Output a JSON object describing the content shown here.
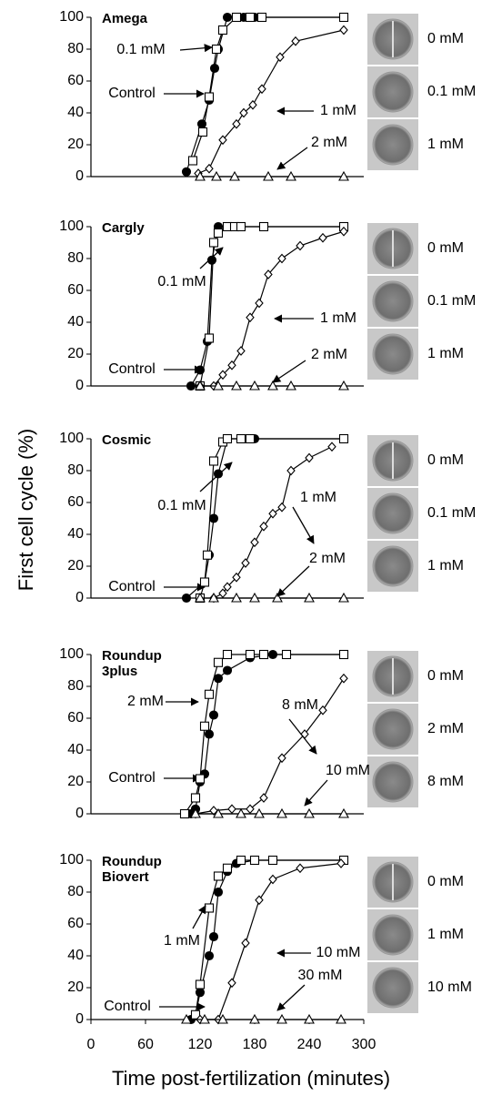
{
  "ylabel": "First cell cycle (%)",
  "xlabel": "Time post-fertilization (minutes)",
  "chart_data": [
    {
      "type": "line",
      "title": "Amega",
      "xlim": [
        0,
        300
      ],
      "ylim": [
        0,
        100
      ],
      "yticks": [
        0,
        20,
        40,
        60,
        80,
        100
      ],
      "image_labels": [
        "0 mM",
        "0.1 mM",
        "1 mM"
      ],
      "series": [
        {
          "name": "Control",
          "marker": "circle",
          "color": "#000000",
          "x": [
            105,
            122,
            130,
            136,
            140,
            150,
            160,
            168,
            180,
            278
          ],
          "values": [
            3,
            33,
            48,
            68,
            80,
            100,
            100,
            100,
            100,
            100
          ]
        },
        {
          "name": "0.1 mM",
          "marker": "square",
          "color": "#000000",
          "x": [
            112,
            123,
            130,
            138,
            145,
            160,
            175,
            188,
            278
          ],
          "values": [
            10,
            28,
            50,
            80,
            92,
            100,
            100,
            100,
            100
          ]
        },
        {
          "name": "1 mM",
          "marker": "diamond",
          "color": "#000000",
          "x": [
            118,
            130,
            145,
            160,
            168,
            178,
            188,
            208,
            225,
            278
          ],
          "values": [
            2,
            5,
            23,
            33,
            40,
            45,
            55,
            75,
            85,
            92
          ]
        },
        {
          "name": "2 mM",
          "marker": "triangle",
          "color": "#000000",
          "x": [
            120,
            138,
            158,
            195,
            220,
            278
          ],
          "values": [
            0,
            0,
            0,
            0,
            0,
            0
          ]
        }
      ]
    },
    {
      "type": "line",
      "title": "Cargly",
      "xlim": [
        0,
        300
      ],
      "ylim": [
        0,
        100
      ],
      "yticks": [
        0,
        20,
        40,
        60,
        80,
        100
      ],
      "image_labels": [
        "0 mM",
        "0.1 mM",
        "1 mM"
      ],
      "series": [
        {
          "name": "Control",
          "marker": "circle",
          "color": "#000000",
          "x": [
            110,
            120,
            128,
            133,
            140,
            150,
            160,
            278
          ],
          "values": [
            0,
            10,
            28,
            79,
            100,
            100,
            100,
            100
          ]
        },
        {
          "name": "0.1 mM",
          "marker": "square",
          "color": "#000000",
          "x": [
            120,
            130,
            135,
            140,
            150,
            158,
            165,
            190,
            278
          ],
          "values": [
            0,
            30,
            90,
            96,
            100,
            100,
            100,
            100,
            100
          ]
        },
        {
          "name": "1 mM",
          "marker": "diamond",
          "color": "#000000",
          "x": [
            120,
            135,
            145,
            155,
            165,
            175,
            185,
            195,
            210,
            230,
            255,
            278
          ],
          "values": [
            0,
            0,
            7,
            13,
            22,
            43,
            52,
            70,
            80,
            88,
            93,
            97
          ]
        },
        {
          "name": "2 mM",
          "marker": "triangle",
          "color": "#000000",
          "x": [
            120,
            140,
            160,
            180,
            200,
            220,
            278
          ],
          "values": [
            0,
            0,
            0,
            0,
            0,
            0,
            0
          ]
        }
      ]
    },
    {
      "type": "line",
      "title": "Cosmic",
      "xlim": [
        0,
        300
      ],
      "ylim": [
        0,
        100
      ],
      "yticks": [
        0,
        20,
        40,
        60,
        80,
        100
      ],
      "image_labels": [
        "0 mM",
        "0.1 mM",
        "1 mM"
      ],
      "series": [
        {
          "name": "Control",
          "marker": "circle",
          "color": "#000000",
          "x": [
            105,
            125,
            130,
            135,
            140,
            150,
            165,
            180,
            278
          ],
          "values": [
            0,
            10,
            27,
            50,
            78,
            100,
            100,
            100,
            100
          ]
        },
        {
          "name": "0.1 mM",
          "marker": "square",
          "color": "#000000",
          "x": [
            120,
            125,
            128,
            135,
            145,
            150,
            165,
            175,
            278
          ],
          "values": [
            0,
            10,
            27,
            86,
            98,
            100,
            100,
            100,
            100
          ]
        },
        {
          "name": "1 mM",
          "marker": "diamond",
          "color": "#000000",
          "x": [
            135,
            145,
            150,
            160,
            170,
            180,
            190,
            200,
            210,
            220,
            240,
            265
          ],
          "values": [
            0,
            3,
            7,
            13,
            22,
            35,
            45,
            53,
            57,
            80,
            88,
            95
          ]
        },
        {
          "name": "2 mM",
          "marker": "triangle",
          "color": "#000000",
          "x": [
            120,
            135,
            160,
            180,
            205,
            240,
            278
          ],
          "values": [
            0,
            0,
            0,
            0,
            0,
            0,
            0
          ]
        }
      ]
    },
    {
      "type": "line",
      "title": "Roundup 3plus",
      "xlim": [
        0,
        300
      ],
      "ylim": [
        0,
        100
      ],
      "yticks": [
        0,
        20,
        40,
        60,
        80,
        100
      ],
      "image_labels": [
        "0 mM",
        "2 mM",
        "8 mM"
      ],
      "series": [
        {
          "name": "Control",
          "marker": "circle",
          "color": "#000000",
          "x": [
            110,
            115,
            120,
            125,
            130,
            135,
            140,
            150,
            175,
            200,
            278
          ],
          "values": [
            0,
            3,
            20,
            25,
            50,
            62,
            85,
            90,
            98,
            100,
            100
          ]
        },
        {
          "name": "2 mM",
          "marker": "square",
          "color": "#000000",
          "x": [
            103,
            115,
            120,
            125,
            130,
            140,
            150,
            175,
            190,
            215,
            278
          ],
          "values": [
            0,
            10,
            22,
            55,
            75,
            95,
            100,
            100,
            100,
            100,
            100
          ]
        },
        {
          "name": "8 mM",
          "marker": "diamond",
          "color": "#000000",
          "x": [
            115,
            135,
            155,
            175,
            190,
            210,
            235,
            255,
            278
          ],
          "values": [
            0,
            2,
            3,
            3,
            10,
            35,
            50,
            65,
            85
          ]
        },
        {
          "name": "10 mM",
          "marker": "triangle",
          "color": "#000000",
          "x": [
            115,
            140,
            165,
            185,
            210,
            240,
            278
          ],
          "values": [
            0,
            0,
            0,
            0,
            0,
            0,
            0
          ]
        }
      ]
    },
    {
      "type": "line",
      "title": "Roundup Biovert",
      "xlim": [
        0,
        300
      ],
      "ylim": [
        0,
        100
      ],
      "yticks": [
        0,
        20,
        40,
        60,
        80,
        100
      ],
      "xticks": [
        0,
        60,
        120,
        180,
        240,
        300
      ],
      "image_labels": [
        "0 mM",
        "1 mM",
        "10 mM"
      ],
      "series": [
        {
          "name": "Control",
          "marker": "circle",
          "color": "#000000",
          "x": [
            110,
            115,
            120,
            130,
            135,
            140,
            150,
            160,
            180,
            278
          ],
          "values": [
            0,
            3,
            17,
            40,
            52,
            80,
            93,
            98,
            100,
            100
          ]
        },
        {
          "name": "1 mM",
          "marker": "square",
          "color": "#000000",
          "x": [
            115,
            120,
            130,
            140,
            150,
            165,
            180,
            200,
            278
          ],
          "values": [
            3,
            22,
            70,
            90,
            95,
            100,
            100,
            100,
            100
          ]
        },
        {
          "name": "10 mM",
          "marker": "diamond",
          "color": "#000000",
          "x": [
            120,
            140,
            155,
            170,
            185,
            200,
            230,
            275
          ],
          "values": [
            0,
            0,
            23,
            48,
            75,
            88,
            95,
            98
          ]
        },
        {
          "name": "30 mM",
          "marker": "triangle",
          "color": "#000000",
          "x": [
            105,
            125,
            145,
            180,
            210,
            240,
            275
          ],
          "values": [
            0,
            0,
            0,
            0,
            0,
            0,
            0
          ]
        }
      ]
    }
  ]
}
